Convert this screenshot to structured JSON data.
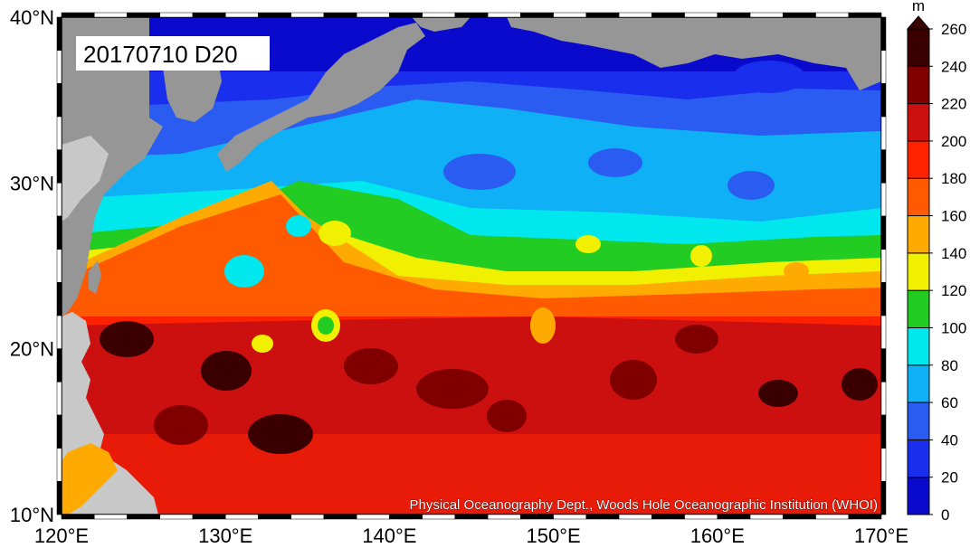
{
  "title": "20170710 D20",
  "credit": "Physical Oceanography Dept., Woods Hole Oceanographic Institution (WHOI)",
  "colorbar": {
    "unit": "m",
    "levels": [
      0,
      20,
      40,
      60,
      80,
      100,
      120,
      140,
      160,
      180,
      200,
      220,
      240,
      260
    ],
    "colors": [
      "#0a0acc",
      "#1a2eee",
      "#2a5cf2",
      "#0fb0f5",
      "#00e8ee",
      "#22cc22",
      "#f0f000",
      "#ffaa00",
      "#ff5a00",
      "#ff2200",
      "#cc1010",
      "#800000",
      "#3a0000"
    ]
  },
  "axes": {
    "x_ticks": [
      "120°E",
      "130°E",
      "140°E",
      "150°E",
      "160°E",
      "170°E"
    ],
    "y_ticks": [
      "40°N",
      "30°N",
      "20°N",
      "10°N"
    ]
  },
  "colors": {
    "land_gray": "#969696",
    "land_light": "#c8c8c8"
  }
}
